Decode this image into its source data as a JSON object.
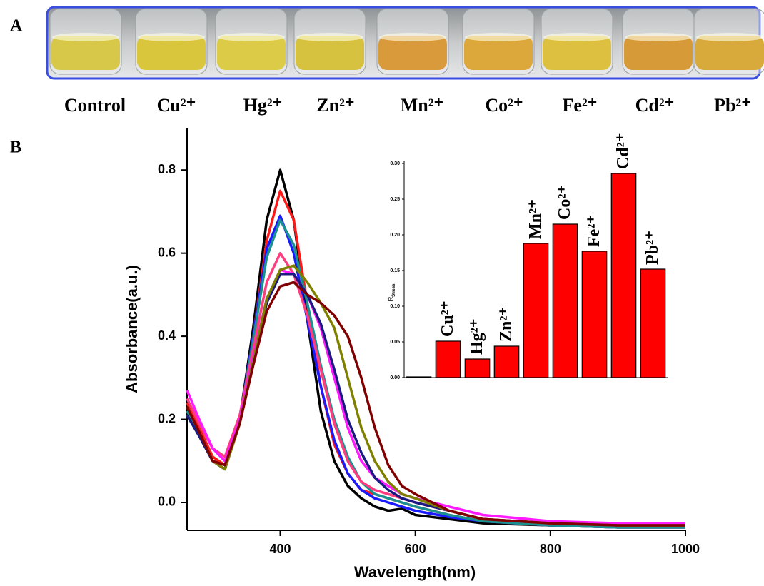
{
  "panel_a": {
    "label": "A",
    "samples": [
      {
        "name": "Control",
        "color": "#d8c84a"
      },
      {
        "name": "Cu²⁺",
        "color": "#d9c63c"
      },
      {
        "name": "Hg²⁺",
        "color": "#dccb46"
      },
      {
        "name": "Zn²⁺",
        "color": "#d6c23e"
      },
      {
        "name": "Mn²⁺",
        "color": "#d99a3c"
      },
      {
        "name": "Co²⁺",
        "color": "#dca83c"
      },
      {
        "name": "Fe²⁺",
        "color": "#ddc040"
      },
      {
        "name": "Cd²⁺",
        "color": "#d69a38"
      },
      {
        "name": "Pb²⁺",
        "color": "#d8aa3c"
      }
    ]
  },
  "panel_b": {
    "label": "B"
  },
  "chart_data": [
    {
      "type": "line",
      "xlabel": "Wavelength(nm)",
      "ylabel": "Absorbance(a.u.)",
      "xlim": [
        262,
        1000
      ],
      "ylim": [
        -0.067,
        0.9
      ],
      "xticks": [
        400,
        600,
        800,
        1000
      ],
      "yticks": [
        {
          "value": 0,
          "label": "0.0"
        },
        0.2,
        0.4,
        0.6,
        0.8
      ],
      "x": [
        262,
        280,
        300,
        318,
        340,
        360,
        380,
        400,
        420,
        440,
        460,
        480,
        500,
        520,
        540,
        560,
        580,
        600,
        650,
        700,
        800,
        900,
        1000
      ],
      "series": [
        {
          "color": "#000000",
          "values": [
            0.22,
            0.16,
            0.1,
            0.08,
            0.2,
            0.42,
            0.68,
            0.8,
            0.68,
            0.44,
            0.22,
            0.1,
            0.04,
            0.01,
            -0.01,
            -0.02,
            -0.015,
            -0.03,
            -0.04,
            -0.05,
            -0.055,
            -0.06,
            -0.06
          ]
        },
        {
          "color": "#ff1a1a",
          "values": [
            0.24,
            0.18,
            0.11,
            0.09,
            0.2,
            0.4,
            0.63,
            0.75,
            0.68,
            0.48,
            0.28,
            0.14,
            0.07,
            0.03,
            0.02,
            0.01,
            0.0,
            -0.01,
            -0.03,
            -0.045,
            -0.055,
            -0.06,
            -0.06
          ]
        },
        {
          "color": "#1a1aff",
          "values": [
            0.21,
            0.16,
            0.1,
            0.08,
            0.2,
            0.4,
            0.61,
            0.69,
            0.6,
            0.44,
            0.28,
            0.15,
            0.07,
            0.03,
            0.01,
            0.0,
            -0.01,
            -0.02,
            -0.035,
            -0.045,
            -0.055,
            -0.06,
            -0.06
          ]
        },
        {
          "color": "#1a9090",
          "values": [
            0.22,
            0.17,
            0.1,
            0.08,
            0.2,
            0.39,
            0.59,
            0.68,
            0.62,
            0.48,
            0.33,
            0.2,
            0.11,
            0.05,
            0.02,
            0.01,
            0.0,
            -0.01,
            -0.03,
            -0.045,
            -0.055,
            -0.06,
            -0.06
          ]
        },
        {
          "color": "#ff3d7f",
          "values": [
            0.25,
            0.19,
            0.13,
            0.11,
            0.21,
            0.37,
            0.53,
            0.6,
            0.55,
            0.45,
            0.32,
            0.19,
            0.1,
            0.05,
            0.03,
            0.02,
            0.01,
            0.0,
            -0.02,
            -0.04,
            -0.05,
            -0.055,
            -0.055
          ]
        },
        {
          "color": "#ff1aff",
          "values": [
            0.27,
            0.2,
            0.13,
            0.1,
            0.2,
            0.35,
            0.49,
            0.56,
            0.55,
            0.5,
            0.42,
            0.3,
            0.18,
            0.1,
            0.06,
            0.04,
            0.02,
            0.01,
            -0.01,
            -0.03,
            -0.045,
            -0.05,
            -0.05
          ]
        },
        {
          "color": "#1a1a80",
          "values": [
            0.21,
            0.16,
            0.1,
            0.08,
            0.19,
            0.34,
            0.48,
            0.55,
            0.55,
            0.5,
            0.43,
            0.32,
            0.2,
            0.12,
            0.06,
            0.03,
            0.01,
            0.0,
            -0.02,
            -0.04,
            -0.05,
            -0.055,
            -0.055
          ]
        },
        {
          "color": "#808000",
          "values": [
            0.23,
            0.17,
            0.1,
            0.08,
            0.19,
            0.34,
            0.49,
            0.56,
            0.57,
            0.53,
            0.48,
            0.42,
            0.3,
            0.18,
            0.1,
            0.05,
            0.02,
            0.01,
            -0.02,
            -0.04,
            -0.05,
            -0.055,
            -0.055
          ]
        },
        {
          "color": "#800000",
          "values": [
            0.23,
            0.17,
            0.1,
            0.09,
            0.19,
            0.33,
            0.46,
            0.52,
            0.53,
            0.5,
            0.48,
            0.45,
            0.4,
            0.3,
            0.18,
            0.09,
            0.04,
            0.02,
            -0.02,
            -0.04,
            -0.05,
            -0.055,
            -0.055
          ]
        }
      ]
    },
    {
      "type": "bar",
      "ylabel": "R",
      "ylabel_sub": "Stress",
      "color": "#ff0000",
      "categories": [
        null,
        "Cu²⁺",
        "Hg²⁺",
        "Zn²⁺",
        "Mn²⁺",
        "Co²⁺",
        "Fe²⁺",
        "Cd²⁺",
        "Pb²⁺"
      ],
      "values": [
        0.001,
        0.051,
        0.026,
        0.044,
        0.188,
        0.215,
        0.177,
        0.286,
        0.152
      ],
      "ylim": [
        0,
        0.3
      ],
      "yticks": [
        {
          "value": 0,
          "label": "0.00"
        },
        {
          "value": 0.05,
          "label": "0.05"
        },
        {
          "value": 0.1,
          "label": "0.10"
        },
        {
          "value": 0.15,
          "label": "0.15"
        },
        {
          "value": 0.2,
          "label": "0.20"
        },
        {
          "value": 0.25,
          "label": "0.25"
        },
        {
          "value": 0.3,
          "label": "0.30"
        }
      ]
    }
  ]
}
